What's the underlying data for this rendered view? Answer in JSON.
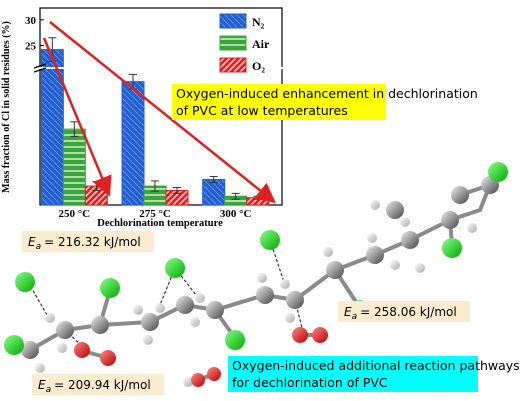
{
  "chart_data": {
    "type": "bar",
    "y_label": "Mass fraction of Cl in solid residues (%)",
    "x_label": "Dechlorination temperature",
    "categories": [
      "250 °C",
      "275 °C",
      "300 °C"
    ],
    "series": [
      {
        "name": "N₂",
        "color": "#1f5fd6",
        "values": [
          24.2,
          16.9,
          3.5
        ],
        "errors": [
          2.3,
          1.0,
          0.4
        ]
      },
      {
        "name": "Air",
        "color": "#3aa63a",
        "values": [
          10.4,
          2.6,
          1.2
        ],
        "errors": [
          1.0,
          0.7,
          0.4
        ]
      },
      {
        "name": "O₂",
        "color": "#e02020",
        "values": [
          2.6,
          2.0,
          1.0
        ],
        "errors": [
          0.6,
          0.4,
          0.2
        ]
      }
    ],
    "ylim": [
      0,
      32.3
    ],
    "axis_break": [
      18.5,
      21
    ],
    "yticks": [
      25,
      30
    ],
    "legend": "upper right",
    "annotation": [
      "Oxygen-induced enhancement in dechlorination",
      "of PVC at low temperatures"
    ]
  },
  "pathway_note": [
    "Oxygen-induced additional reaction pathways",
    "for dechlorination of PVC"
  ],
  "energy_labels": [
    {
      "symbol": "E",
      "subscript": "a",
      "text": "= 216.32 kJ/mol"
    },
    {
      "symbol": "E",
      "subscript": "a",
      "text": "= 258.06 kJ/mol"
    },
    {
      "symbol": "E",
      "subscript": "a",
      "text": "= 209.94 kJ/mol"
    }
  ]
}
